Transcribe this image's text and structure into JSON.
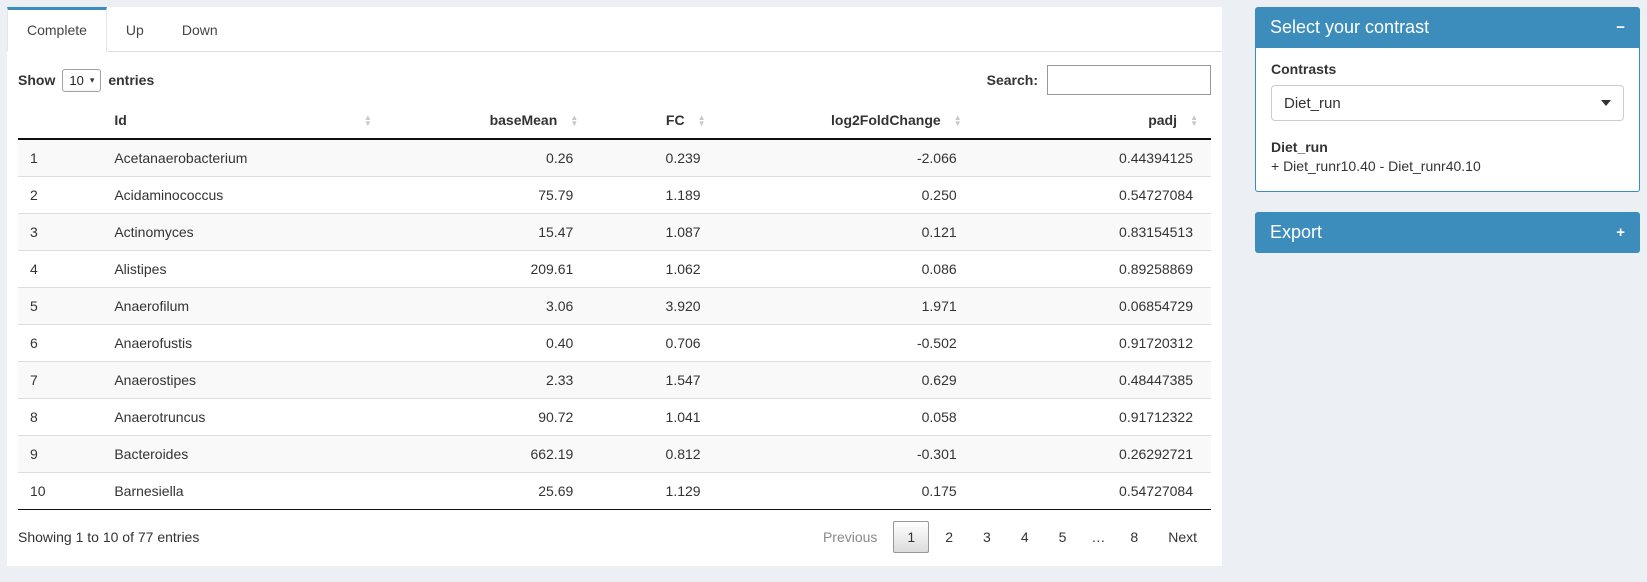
{
  "theme": {
    "accent": "#3c8dbc",
    "page_bg": "#ecf0f5",
    "stripe_bg": "#f9f9f9"
  },
  "icons": {
    "collapse": "−",
    "expand": "+",
    "caret_down": "▾",
    "sort_asc": "▲",
    "sort_desc": "▼"
  },
  "tabs": [
    {
      "label": "Complete",
      "active": true
    },
    {
      "label": "Up",
      "active": false
    },
    {
      "label": "Down",
      "active": false
    }
  ],
  "length_menu": {
    "before": "Show",
    "selected": "10",
    "after": "entries"
  },
  "search": {
    "label": "Search:",
    "value": ""
  },
  "table": {
    "columns": [
      {
        "key": "rownum",
        "label": "",
        "align": "left",
        "sortable": false
      },
      {
        "key": "id",
        "label": "Id",
        "align": "left",
        "sortable": true
      },
      {
        "key": "basemean",
        "label": "baseMean",
        "align": "right",
        "sortable": true
      },
      {
        "key": "fc",
        "label": "FC",
        "align": "right",
        "sortable": true
      },
      {
        "key": "log2foldchange",
        "label": "log2FoldChange",
        "align": "right",
        "sortable": true
      },
      {
        "key": "padj",
        "label": "padj",
        "align": "right",
        "sortable": true
      }
    ],
    "rows": [
      [
        "1",
        "Acetanaerobacterium",
        "0.26",
        "0.239",
        "-2.066",
        "0.44394125"
      ],
      [
        "2",
        "Acidaminococcus",
        "75.79",
        "1.189",
        "0.250",
        "0.54727084"
      ],
      [
        "3",
        "Actinomyces",
        "15.47",
        "1.087",
        "0.121",
        "0.83154513"
      ],
      [
        "4",
        "Alistipes",
        "209.61",
        "1.062",
        "0.086",
        "0.89258869"
      ],
      [
        "5",
        "Anaerofilum",
        "3.06",
        "3.920",
        "1.971",
        "0.06854729"
      ],
      [
        "6",
        "Anaerofustis",
        "0.40",
        "0.706",
        "-0.502",
        "0.91720312"
      ],
      [
        "7",
        "Anaerostipes",
        "2.33",
        "1.547",
        "0.629",
        "0.48447385"
      ],
      [
        "8",
        "Anaerotruncus",
        "90.72",
        "1.041",
        "0.058",
        "0.91712322"
      ],
      [
        "9",
        "Bacteroides",
        "662.19",
        "0.812",
        "-0.301",
        "0.26292721"
      ],
      [
        "10",
        "Barnesiella",
        "25.69",
        "1.129",
        "0.175",
        "0.54727084"
      ]
    ]
  },
  "info": "Showing 1 to 10 of 77 entries",
  "pagination": {
    "previous": "Previous",
    "pages": [
      "1",
      "2",
      "3",
      "4",
      "5",
      "…",
      "8"
    ],
    "current": "1",
    "next": "Next"
  },
  "contrast_panel": {
    "title": "Select your contrast",
    "contrasts_label": "Contrasts",
    "selected_contrast": "Diet_run",
    "contrast_name": "Diet_run",
    "contrast_formula": "+ Diet_runr10.40 - Diet_runr40.10"
  },
  "export_panel": {
    "title": "Export"
  }
}
